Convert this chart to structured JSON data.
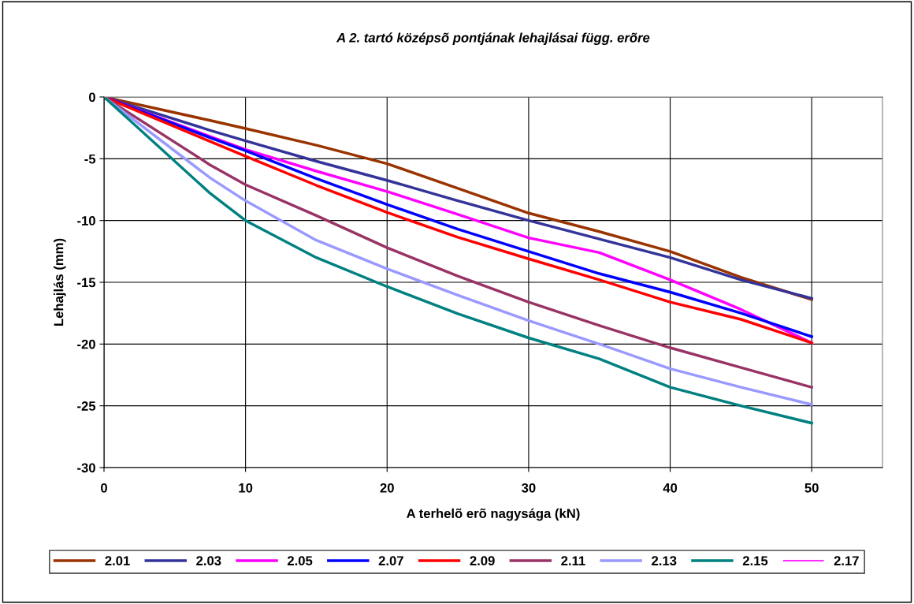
{
  "chart_data": {
    "type": "line",
    "title": "A 2. tartó középsõ pontjának lehajlásai függ. erõre",
    "xlabel": "A terhelõ erõ nagysága (kN)",
    "ylabel": "Lehajlás (mm)",
    "x": [
      0,
      7.5,
      10,
      15,
      20,
      25,
      30,
      35,
      40,
      45,
      50
    ],
    "xlim": [
      0,
      55
    ],
    "xticks": [
      0,
      10,
      20,
      30,
      40,
      50
    ],
    "ylim": [
      -30,
      0
    ],
    "yticks": [
      -30,
      -25,
      -20,
      -15,
      -10,
      -5,
      0
    ],
    "grid": true,
    "legend": "bottom",
    "marker": "none",
    "line_style": "solid",
    "series": [
      {
        "name": "2.01",
        "color": "#993300",
        "values": [
          0,
          -1.9,
          -2.55,
          -3.9,
          -5.4,
          -7.4,
          -9.4,
          -10.9,
          -12.5,
          -14.6,
          -16.4
        ]
      },
      {
        "name": "2.03",
        "color": "#333399",
        "values": [
          0,
          -2.7,
          -3.55,
          -5.2,
          -6.75,
          -8.4,
          -10.0,
          -11.5,
          -13.0,
          -14.8,
          -16.3
        ]
      },
      {
        "name": "2.05",
        "color": "#ff00ff",
        "values": [
          0,
          -3.2,
          -4.25,
          -6.0,
          -7.65,
          -9.5,
          -11.4,
          -12.6,
          -14.8,
          -17.2,
          -19.9
        ]
      },
      {
        "name": "2.07",
        "color": "#0000ff",
        "values": [
          0,
          -3.3,
          -4.35,
          -6.6,
          -8.7,
          -10.7,
          -12.5,
          -14.3,
          -15.8,
          -17.5,
          -19.4
        ]
      },
      {
        "name": "2.09",
        "color": "#ff0000",
        "values": [
          0,
          -3.6,
          -4.8,
          -7.15,
          -9.35,
          -11.35,
          -13.1,
          -14.8,
          -16.6,
          -18.0,
          -19.9
        ]
      },
      {
        "name": "2.11",
        "color": "#993366",
        "values": [
          0,
          -5.5,
          -7.1,
          -9.6,
          -12.2,
          -14.5,
          -16.6,
          -18.5,
          -20.3,
          -21.9,
          -23.5
        ]
      },
      {
        "name": "2.13",
        "color": "#9999ff",
        "values": [
          0,
          -6.55,
          -8.4,
          -11.6,
          -13.9,
          -16.05,
          -18.1,
          -20.0,
          -22.0,
          -23.5,
          -24.9
        ]
      },
      {
        "name": "2.15",
        "color": "#008080",
        "values": [
          0,
          -7.8,
          -10.0,
          -13.0,
          -15.35,
          -17.55,
          -19.5,
          -21.2,
          -23.5,
          -25.0,
          -26.4
        ]
      },
      {
        "name": "2.17",
        "color": "#ff00ff",
        "values": [
          null,
          null,
          null,
          null,
          null,
          null,
          null,
          null,
          null,
          null,
          null
        ]
      }
    ]
  }
}
